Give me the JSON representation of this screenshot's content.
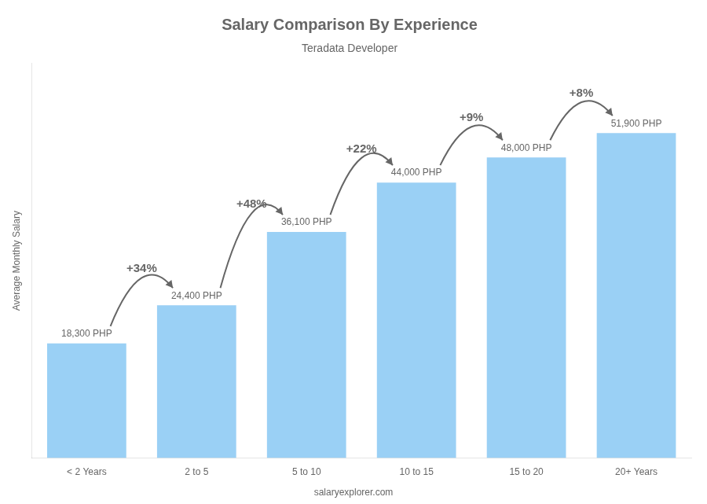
{
  "chart_data": {
    "type": "bar",
    "title": "Salary Comparison By Experience",
    "subtitle": "Teradata Developer",
    "categories": [
      "< 2 Years",
      "2 to 5",
      "5 to 10",
      "10 to 15",
      "15 to 20",
      "20+ Years"
    ],
    "values": [
      18300,
      24400,
      36100,
      44000,
      48000,
      51900
    ],
    "value_labels": [
      "18,300 PHP",
      "24,400 PHP",
      "36,100 PHP",
      "44,000 PHP",
      "48,000 PHP",
      "51,900 PHP"
    ],
    "data_labels": true,
    "ylabel": "Average Monthly Salary",
    "ylim": [
      0,
      63000
    ],
    "tick_labels": "x",
    "grid": false,
    "annotations": [
      "+34%",
      "+48%",
      "+22%",
      "+9%",
      "+8%"
    ],
    "watermark": "salaryexplorer.com"
  }
}
